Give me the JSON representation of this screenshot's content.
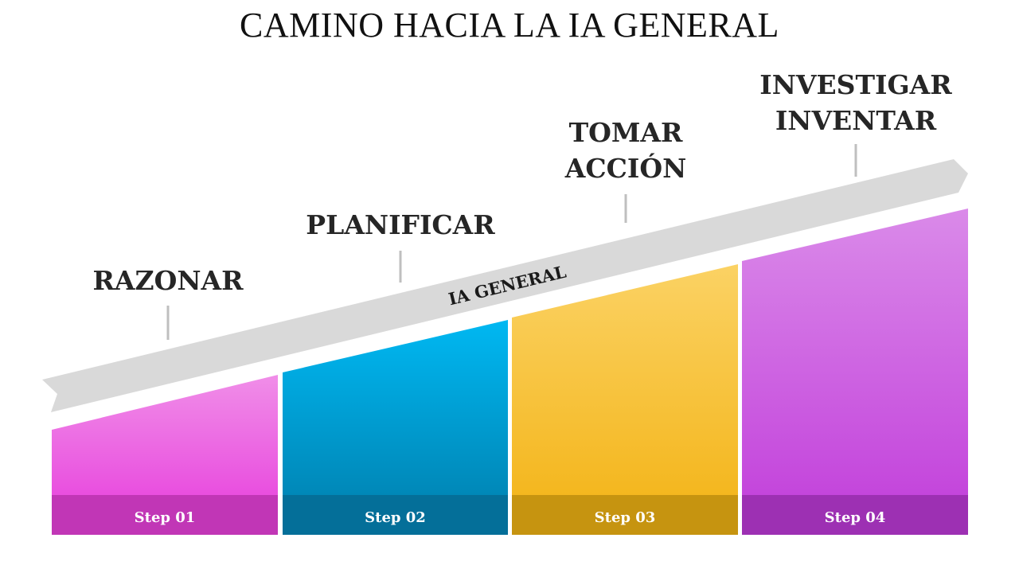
{
  "title": "CAMINO HACIA LA IA GENERAL",
  "banner": {
    "label": "IA GENERAL",
    "color": "#d9d9d9"
  },
  "stages": [
    {
      "label": [
        "RAZONAR"
      ],
      "step": "Step 01",
      "color_top": "#f08ee8",
      "color_bottom": "#e94fdf",
      "band": "#c136b6"
    },
    {
      "label": [
        "PLANIFICAR"
      ],
      "step": "Step 02",
      "color_top": "#00b8f2",
      "color_bottom": "#0088b8",
      "band": "#046f99"
    },
    {
      "label": [
        "TOMAR",
        "ACCIÓN"
      ],
      "step": "Step 03",
      "color_top": "#fbd264",
      "color_bottom": "#f4b71f",
      "band": "#c69410"
    },
    {
      "label": [
        "INVESTIGAR",
        "INVENTAR"
      ],
      "step": "Step 04",
      "color_top": "#da8ae9",
      "color_bottom": "#c446dc",
      "band": "#9d30b3"
    }
  ]
}
